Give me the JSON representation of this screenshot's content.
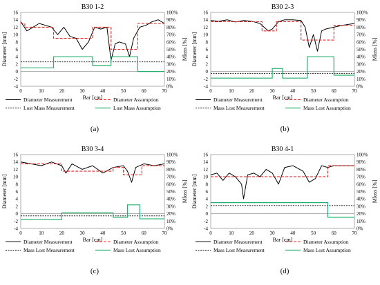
{
  "chart_data": [
    {
      "type": "line",
      "title": "B30 1-2",
      "caption": "(a)",
      "xlabel": "Bar [cm]",
      "ylabel": "Diameter [mm]",
      "y2label": "Mloss [%]",
      "xlim": [
        0,
        70
      ],
      "ylim": [
        -4,
        16
      ],
      "y2lim": [
        0,
        100
      ],
      "xticks": [
        "0",
        "10",
        "20",
        "30",
        "40",
        "50",
        "60",
        "70"
      ],
      "yticks": [
        "-4",
        "-2",
        "0",
        "2",
        "4",
        "6",
        "8",
        "10",
        "12",
        "14",
        "16"
      ],
      "y2ticks": [
        "0%",
        "10%",
        "20%",
        "30%",
        "40%",
        "50%",
        "60%",
        "70%",
        "80%",
        "90%",
        "100%"
      ],
      "legend": [
        "Diameter Measurement",
        "Diameter Assumption",
        "Lost Mass Measurement",
        "Lost Mass Assumption"
      ],
      "series": [
        {
          "name": "Diameter Measurement",
          "style": "solid-black",
          "x": [
            0,
            3,
            6,
            9,
            12,
            15,
            18,
            21,
            24,
            27,
            30,
            33,
            36,
            39,
            42,
            44,
            46,
            48,
            51,
            53,
            55,
            58,
            61,
            64,
            67,
            70
          ],
          "y": [
            13.5,
            11.0,
            12.0,
            13.0,
            12.5,
            12.0,
            10.0,
            12.0,
            9.5,
            9.0,
            6.0,
            8.0,
            12.0,
            11.5,
            12.0,
            3.0,
            7.5,
            8.0,
            7.5,
            4.0,
            9.0,
            12.0,
            12.5,
            13.5,
            14.0,
            13.0
          ]
        },
        {
          "name": "Diameter Assumption",
          "style": "dashed-red",
          "x": [
            0,
            2,
            2,
            16,
            16,
            35,
            35,
            44,
            44,
            57,
            57,
            70
          ],
          "y": [
            13,
            13,
            12,
            12,
            9,
            9,
            12,
            12,
            6,
            6,
            13,
            13
          ]
        },
        {
          "name": "Lost Mass Measurement",
          "style": "dashed-black",
          "x": [
            0,
            70
          ],
          "y": [
            2.6,
            2.6
          ]
        },
        {
          "name": "Lost Mass Assumption",
          "style": "solid-green",
          "x": [
            0,
            16,
            16,
            35,
            35,
            44,
            44,
            57,
            57,
            70
          ],
          "y": [
            1.0,
            1.0,
            4.0,
            4.0,
            1.6,
            1.6,
            4.0,
            4.0,
            0.0,
            0.0
          ]
        }
      ]
    },
    {
      "type": "line",
      "title": "B30 2-3",
      "caption": "(b)",
      "xlabel": "Bar [cm]",
      "ylabel": "Diameter [mm]",
      "y2label": "Mloss [%]",
      "xlim": [
        0,
        70
      ],
      "ylim": [
        -4,
        16
      ],
      "y2lim": [
        0,
        100
      ],
      "xticks": [
        "0",
        "10",
        "20",
        "30",
        "40",
        "50",
        "60",
        "70"
      ],
      "yticks": [
        "-4",
        "-2",
        "0",
        "2",
        "4",
        "6",
        "8",
        "10",
        "12",
        "14",
        "16"
      ],
      "y2ticks": [
        "0%",
        "10%",
        "20%",
        "30%",
        "40%",
        "50%",
        "60%",
        "70%",
        "80%",
        "90%",
        "100%"
      ],
      "legend": [
        "Diameter Measurement",
        "Diameter Assumption",
        "Mass Lost Measurement",
        "Mass Lost Assumption"
      ],
      "series": [
        {
          "name": "Diameter Measurement",
          "style": "solid-black",
          "x": [
            0,
            4,
            8,
            12,
            16,
            20,
            24,
            28,
            30,
            33,
            36,
            40,
            44,
            46,
            48,
            50,
            52,
            54,
            56,
            60,
            64,
            70
          ],
          "y": [
            13.8,
            13.6,
            14.0,
            13.4,
            13.8,
            13.6,
            13.0,
            11.0,
            11.5,
            13.5,
            14.0,
            14.0,
            13.8,
            12.0,
            6.5,
            10.0,
            5.5,
            11.0,
            11.5,
            12.0,
            12.5,
            13.0
          ]
        },
        {
          "name": "Diameter Assumption",
          "style": "dashed-red",
          "x": [
            0,
            25,
            25,
            32,
            32,
            44,
            44,
            60,
            60,
            70
          ],
          "y": [
            13.5,
            13.5,
            11.0,
            11.0,
            13.5,
            13.5,
            8.5,
            8.5,
            12.5,
            12.5
          ]
        },
        {
          "name": "Mass Lost Measurement",
          "style": "dashed-black",
          "x": [
            0,
            70
          ],
          "y": [
            -0.5,
            -0.5
          ]
        },
        {
          "name": "Mass Lost Assumption",
          "style": "solid-green",
          "x": [
            0,
            30,
            30,
            35,
            35,
            47,
            47,
            60,
            60,
            70
          ],
          "y": [
            -1.8,
            -1.8,
            0.8,
            0.8,
            -1.8,
            -1.8,
            4.0,
            4.0,
            -1.0,
            -1.0
          ]
        }
      ]
    },
    {
      "type": "line",
      "title": "B30 3-4",
      "caption": "(c)",
      "xlabel": "Bar [cm]",
      "ylabel": "Diameter [mm]",
      "y2label": "Mloss [%]",
      "xlim": [
        0,
        70
      ],
      "ylim": [
        -4,
        16
      ],
      "y2lim": [
        0,
        100
      ],
      "xticks": [
        "0",
        "10",
        "20",
        "30",
        "40",
        "50",
        "60",
        "70"
      ],
      "yticks": [
        "-4",
        "-2",
        "0",
        "2",
        "4",
        "6",
        "8",
        "10",
        "12",
        "14",
        "16"
      ],
      "y2ticks": [
        "0%",
        "10%",
        "20%",
        "30%",
        "40%",
        "50%",
        "60%",
        "70%",
        "80%",
        "90%",
        "100%"
      ],
      "legend": [
        "Diameter Measurement",
        "Diameter Assumption",
        "Mass Lost Measurement",
        "Mass Lost Assumption"
      ],
      "series": [
        {
          "name": "Diameter Measurement",
          "style": "solid-black",
          "x": [
            0,
            5,
            10,
            15,
            20,
            22,
            25,
            30,
            35,
            40,
            45,
            50,
            52,
            54,
            56,
            60,
            65,
            70
          ],
          "y": [
            14.0,
            13.5,
            13.0,
            14.0,
            13.0,
            11.0,
            13.5,
            12.0,
            13.0,
            11.0,
            12.5,
            13.0,
            11.5,
            8.5,
            12.5,
            13.5,
            13.0,
            13.5
          ]
        },
        {
          "name": "Diameter Assumption",
          "style": "dashed-red",
          "x": [
            0,
            20,
            20,
            45,
            45,
            50,
            50,
            59,
            59,
            70
          ],
          "y": [
            13.5,
            13.5,
            11.5,
            11.5,
            12.5,
            12.5,
            10.5,
            10.5,
            13.0,
            13.0
          ]
        },
        {
          "name": "Mass Lost Measurement",
          "style": "dashed-black",
          "x": [
            0,
            70
          ],
          "y": [
            -0.6,
            -0.6
          ]
        },
        {
          "name": "Mass Lost Assumption",
          "style": "solid-green",
          "x": [
            0,
            20,
            20,
            45,
            45,
            52,
            52,
            58,
            58,
            70
          ],
          "y": [
            -1.6,
            -1.6,
            0.2,
            0.2,
            -1.0,
            -1.0,
            2.4,
            2.4,
            -1.4,
            -1.4
          ]
        }
      ]
    },
    {
      "type": "line",
      "title": "B30 4-1",
      "caption": "(d)",
      "xlabel": "Bar [cm]",
      "ylabel": "Diameter [mm]",
      "y2label": "Mloss [%]",
      "xlim": [
        0,
        70
      ],
      "ylim": [
        -4,
        16
      ],
      "y2lim": [
        0,
        100
      ],
      "xticks": [
        "0",
        "10",
        "20",
        "30",
        "40",
        "50",
        "60",
        "70"
      ],
      "yticks": [
        "-4",
        "-2",
        "0",
        "2",
        "4",
        "6",
        "8",
        "10",
        "12",
        "14",
        "16"
      ],
      "y2ticks": [
        "0%",
        "10%",
        "20%",
        "30%",
        "40%",
        "50%",
        "60%",
        "70%",
        "80%",
        "90%",
        "100%"
      ],
      "legend": [
        "Diameter Measurement",
        "Diameter Assumption",
        "Mass Lost Measurement",
        "Mass Lost Assumption"
      ],
      "series": [
        {
          "name": "Diameter Measurement",
          "style": "solid-black",
          "x": [
            0,
            3,
            6,
            9,
            12,
            15,
            16,
            18,
            21,
            24,
            27,
            30,
            33,
            36,
            40,
            45,
            48,
            51,
            54,
            57,
            60,
            65,
            70
          ],
          "y": [
            10.5,
            11.0,
            9.0,
            11.0,
            10.0,
            8.0,
            4.0,
            10.5,
            11.0,
            10.0,
            12.0,
            11.0,
            8.0,
            12.5,
            13.0,
            11.5,
            8.5,
            9.5,
            13.0,
            12.5,
            13.0,
            13.0,
            13.0
          ]
        },
        {
          "name": "Diameter Assumption",
          "style": "dashed-red",
          "x": [
            0,
            57,
            57,
            70
          ],
          "y": [
            10.0,
            10.0,
            13.0,
            13.0
          ]
        },
        {
          "name": "Mass Lost Measurement",
          "style": "dashed-black",
          "x": [
            0,
            70
          ],
          "y": [
            2.2,
            2.2
          ]
        },
        {
          "name": "Mass Lost Assumption",
          "style": "solid-green",
          "x": [
            0,
            57,
            57,
            70
          ],
          "y": [
            3.0,
            3.0,
            -1.0,
            -1.0
          ]
        }
      ]
    }
  ]
}
